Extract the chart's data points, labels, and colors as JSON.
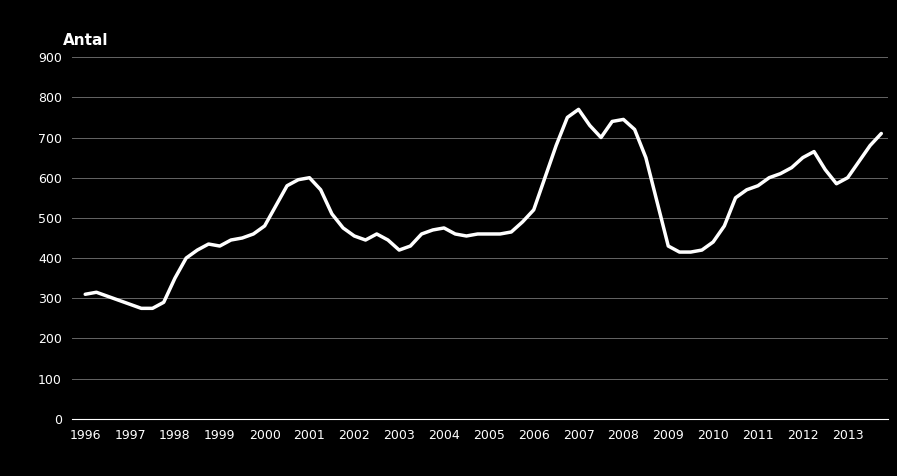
{
  "title": "Antal",
  "background_color": "#000000",
  "line_color": "#ffffff",
  "text_color": "#ffffff",
  "grid_color": "#666666",
  "ylim": [
    0,
    900
  ],
  "yticks": [
    0,
    100,
    200,
    300,
    400,
    500,
    600,
    700,
    800,
    900
  ],
  "xlim": [
    1996,
    2014
  ],
  "xticks": [
    1996,
    1997,
    1998,
    1999,
    2000,
    2001,
    2002,
    2003,
    2004,
    2005,
    2006,
    2007,
    2008,
    2009,
    2010,
    2011,
    2012,
    2013
  ],
  "x": [
    1996.0,
    1996.25,
    1996.5,
    1996.75,
    1997.0,
    1997.25,
    1997.5,
    1997.75,
    1998.0,
    1998.25,
    1998.5,
    1998.75,
    1999.0,
    1999.25,
    1999.5,
    1999.75,
    2000.0,
    2000.25,
    2000.5,
    2000.75,
    2001.0,
    2001.25,
    2001.5,
    2001.75,
    2002.0,
    2002.25,
    2002.5,
    2002.75,
    2003.0,
    2003.25,
    2003.5,
    2003.75,
    2004.0,
    2004.25,
    2004.5,
    2004.75,
    2005.0,
    2005.25,
    2005.5,
    2005.75,
    2006.0,
    2006.25,
    2006.5,
    2006.75,
    2007.0,
    2007.25,
    2007.5,
    2007.75,
    2008.0,
    2008.25,
    2008.5,
    2008.75,
    2009.0,
    2009.25,
    2009.5,
    2009.75,
    2010.0,
    2010.25,
    2010.5,
    2010.75,
    2011.0,
    2011.25,
    2011.5,
    2011.75,
    2012.0,
    2012.25,
    2012.5,
    2012.75,
    2013.0,
    2013.25,
    2013.5,
    2013.75
  ],
  "y": [
    310,
    315,
    305,
    295,
    285,
    275,
    275,
    290,
    350,
    400,
    420,
    435,
    430,
    445,
    450,
    460,
    480,
    530,
    580,
    595,
    600,
    570,
    510,
    475,
    455,
    445,
    460,
    445,
    420,
    430,
    460,
    470,
    475,
    460,
    455,
    460,
    460,
    460,
    465,
    490,
    520,
    600,
    680,
    750,
    770,
    730,
    700,
    740,
    745,
    720,
    650,
    540,
    430,
    415,
    415,
    420,
    440,
    480,
    550,
    570,
    580,
    600,
    610,
    625,
    650,
    665,
    620,
    585,
    600,
    640,
    680,
    710
  ],
  "line_width": 2.5,
  "title_fontsize": 11,
  "tick_fontsize": 9
}
